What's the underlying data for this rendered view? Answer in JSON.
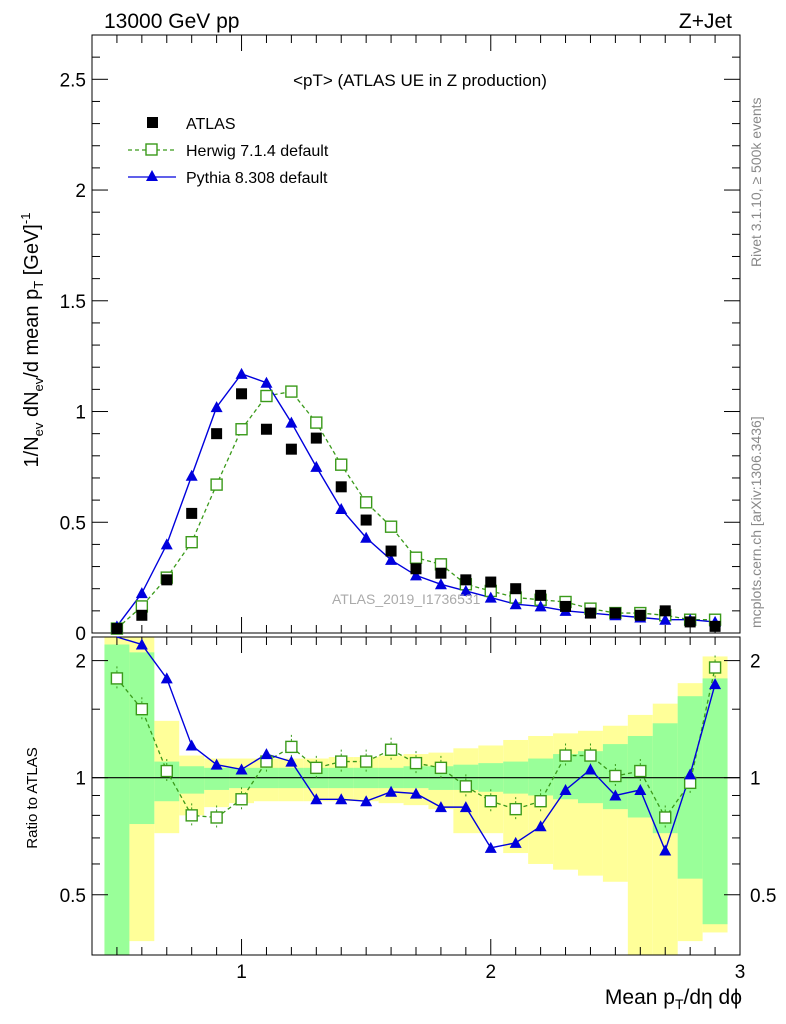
{
  "header": {
    "energy_label": "13000 GeV pp",
    "process_label": "Z+Jet"
  },
  "side_labels": {
    "rivet": "Rivet 3.1.10, ≥ 500k events",
    "source": "mcplots.cern.ch [arXiv:1306.3436]"
  },
  "watermark": "ATLAS_2019_I1736531",
  "colors": {
    "data": "#000000",
    "herwig": "#3a9a1a",
    "pythia": "#0000dd",
    "band_inner": "#99ff99",
    "band_outer": "#ffff99"
  },
  "chart_data": [
    {
      "type": "scatter",
      "title": "<pT> (ATLAS UE in Z production)",
      "ylabel": "1/N_ev dN_ev/d mean p_T [GeV]^-1",
      "xlim": [
        0.4,
        3.0
      ],
      "ylim": [
        0,
        2.7
      ],
      "yticks": [
        0,
        0.5,
        1,
        1.5,
        2,
        2.5
      ],
      "ytick_labels": [
        "0",
        "0.5",
        "1",
        "1.5",
        "2",
        "2.5"
      ],
      "legend_position": "top-left",
      "x": [
        0.5,
        0.6,
        0.7,
        0.8,
        0.9,
        1.0,
        1.1,
        1.2,
        1.3,
        1.4,
        1.5,
        1.6,
        1.7,
        1.8,
        1.9,
        2.0,
        2.1,
        2.2,
        2.3,
        2.4,
        2.5,
        2.6,
        2.7,
        2.8,
        2.9
      ],
      "series": [
        {
          "name": "ATLAS",
          "marker": "square-filled",
          "values": [
            0.02,
            0.08,
            0.24,
            0.54,
            0.9,
            1.08,
            0.92,
            0.83,
            0.88,
            0.66,
            0.51,
            0.37,
            0.29,
            0.27,
            0.24,
            0.23,
            0.2,
            0.17,
            0.12,
            0.09,
            0.09,
            0.08,
            0.1,
            0.05,
            0.03
          ]
        },
        {
          "name": "Herwig 7.1.4 default",
          "marker": "square-open",
          "line": "dashed",
          "values": [
            0.02,
            0.12,
            0.25,
            0.41,
            0.67,
            0.92,
            1.07,
            1.09,
            0.95,
            0.76,
            0.59,
            0.48,
            0.34,
            0.31,
            0.22,
            0.19,
            0.16,
            0.15,
            0.14,
            0.11,
            0.09,
            0.09,
            0.08,
            0.06,
            0.06
          ]
        },
        {
          "name": "Pythia 8.308 default",
          "marker": "triangle-filled",
          "line": "solid",
          "values": [
            0.03,
            0.18,
            0.4,
            0.71,
            1.02,
            1.17,
            1.13,
            0.95,
            0.75,
            0.56,
            0.43,
            0.33,
            0.26,
            0.22,
            0.19,
            0.16,
            0.13,
            0.12,
            0.1,
            0.09,
            0.08,
            0.07,
            0.06,
            0.06,
            0.05
          ]
        }
      ]
    },
    {
      "type": "line",
      "ylabel": "Ratio to ATLAS",
      "xlabel": "Mean p_T/dη dϕ",
      "xlim": [
        0.4,
        3.0
      ],
      "ylim": [
        0.35,
        2.3
      ],
      "yticks": [
        0.5,
        1,
        2
      ],
      "ytick_labels": [
        "0.5",
        "1",
        "2"
      ],
      "xticks": [
        1,
        2,
        3
      ],
      "xtick_labels": [
        "1",
        "2",
        "3"
      ],
      "reference_line": 1,
      "x": [
        0.5,
        0.6,
        0.7,
        0.8,
        0.9,
        1.0,
        1.1,
        1.2,
        1.3,
        1.4,
        1.5,
        1.6,
        1.7,
        1.8,
        1.9,
        2.0,
        2.1,
        2.2,
        2.3,
        2.4,
        2.5,
        2.6,
        2.7,
        2.8,
        2.9
      ],
      "series": [
        {
          "name": "Herwig 7.1.4 default",
          "values": [
            1.8,
            1.5,
            1.04,
            0.8,
            0.79,
            0.88,
            1.1,
            1.2,
            1.06,
            1.1,
            1.1,
            1.18,
            1.09,
            1.06,
            0.95,
            0.87,
            0.83,
            0.87,
            1.14,
            1.14,
            1.01,
            1.04,
            0.79,
            0.97,
            1.92
          ]
        },
        {
          "name": "Pythia 8.308 default",
          "values": [
            2.35,
            2.2,
            1.8,
            1.21,
            1.08,
            1.05,
            1.15,
            1.1,
            0.88,
            0.88,
            0.87,
            0.92,
            0.91,
            0.84,
            0.84,
            0.66,
            0.68,
            0.75,
            0.93,
            1.05,
            0.9,
            0.93,
            0.65,
            1.02,
            1.74
          ]
        }
      ],
      "band_inner": [
        [
          0.35,
          2.2
        ],
        [
          0.76,
          2.1
        ],
        [
          0.87,
          1.1
        ],
        [
          0.91,
          1.07
        ],
        [
          0.93,
          1.06
        ],
        [
          0.94,
          1.06
        ],
        [
          0.94,
          1.06
        ],
        [
          0.94,
          1.06
        ],
        [
          0.94,
          1.06
        ],
        [
          0.94,
          1.06
        ],
        [
          0.94,
          1.06
        ],
        [
          0.94,
          1.06
        ],
        [
          0.94,
          1.07
        ],
        [
          0.93,
          1.07
        ],
        [
          0.93,
          1.08
        ],
        [
          0.92,
          1.09
        ],
        [
          0.91,
          1.1
        ],
        [
          0.9,
          1.12
        ],
        [
          0.88,
          1.15
        ],
        [
          0.86,
          1.17
        ],
        [
          0.83,
          1.22
        ],
        [
          0.79,
          1.28
        ],
        [
          0.72,
          1.38
        ],
        [
          0.55,
          1.62
        ],
        [
          0.42,
          1.8
        ]
      ],
      "band_outer": [
        [
          0.35,
          2.3
        ],
        [
          0.38,
          2.3
        ],
        [
          0.72,
          1.4
        ],
        [
          0.8,
          1.14
        ],
        [
          0.84,
          1.12
        ],
        [
          0.86,
          1.12
        ],
        [
          0.87,
          1.12
        ],
        [
          0.87,
          1.12
        ],
        [
          0.87,
          1.12
        ],
        [
          0.87,
          1.13
        ],
        [
          0.87,
          1.13
        ],
        [
          0.86,
          1.14
        ],
        [
          0.85,
          1.15
        ],
        [
          0.83,
          1.16
        ],
        [
          0.72,
          1.19
        ],
        [
          0.72,
          1.21
        ],
        [
          0.64,
          1.25
        ],
        [
          0.6,
          1.28
        ],
        [
          0.58,
          1.3
        ],
        [
          0.56,
          1.32
        ],
        [
          0.54,
          1.36
        ],
        [
          0.35,
          1.45
        ],
        [
          0.35,
          1.55
        ],
        [
          0.38,
          1.75
        ],
        [
          0.4,
          2.05
        ]
      ]
    }
  ]
}
